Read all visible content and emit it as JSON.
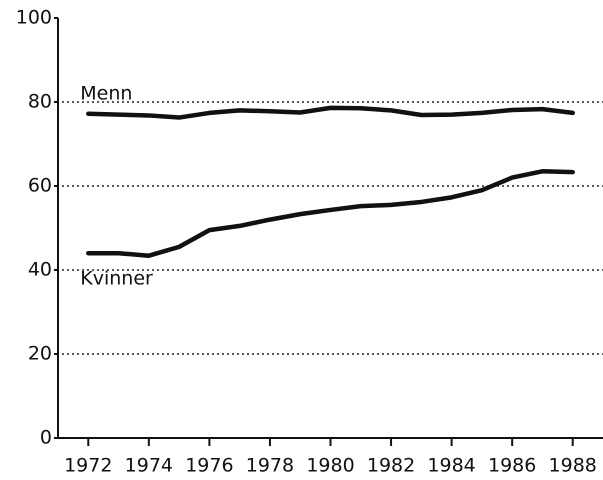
{
  "chart_data": {
    "type": "line",
    "x": [
      1972,
      1973,
      1974,
      1975,
      1976,
      1977,
      1978,
      1979,
      1980,
      1981,
      1982,
      1983,
      1984,
      1985,
      1986,
      1987,
      1988
    ],
    "series": [
      {
        "name": "Menn",
        "color": "#111111",
        "values": [
          77.2,
          77,
          76.8,
          76.3,
          77.4,
          78,
          77.8,
          77.5,
          78.6,
          78.5,
          78,
          76.9,
          77,
          77.4,
          78.1,
          78.3,
          77.4
        ]
      },
      {
        "name": "Kvinner",
        "color": "#111111",
        "values": [
          44,
          44,
          43.4,
          45.5,
          49.5,
          50.5,
          52,
          53.3,
          54.3,
          55.2,
          55.5,
          56.2,
          57.3,
          59,
          62,
          63.5,
          63.3
        ]
      }
    ],
    "xlim": [
      1971,
      1989
    ],
    "xticks": [
      1972,
      1974,
      1976,
      1978,
      1980,
      1982,
      1984,
      1986,
      1988
    ],
    "ylim": [
      0,
      100
    ],
    "yticks": [
      0,
      20,
      40,
      60,
      80,
      100
    ],
    "grid": true
  }
}
